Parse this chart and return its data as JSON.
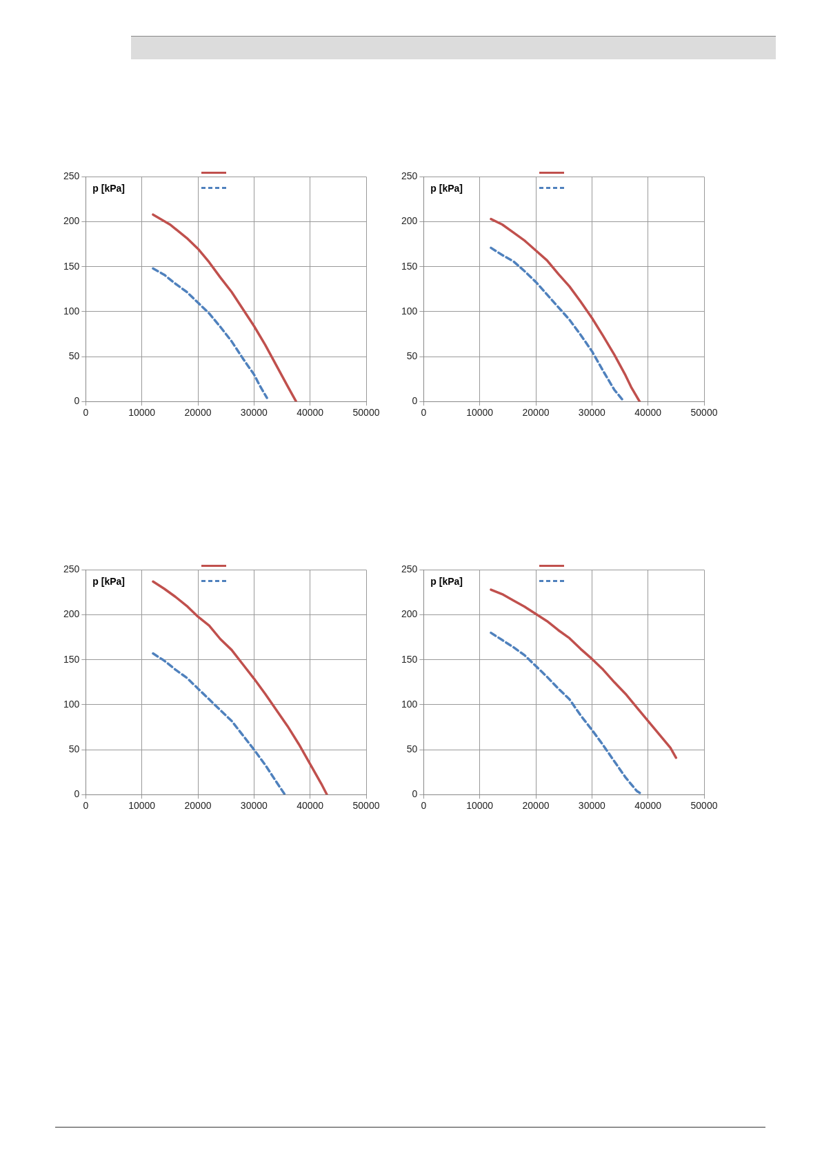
{
  "chart_data": [
    {
      "type": "line",
      "ylabel": "p [kPa]",
      "xlim": [
        0,
        50000
      ],
      "xticks": [
        0,
        10000,
        20000,
        30000,
        40000,
        50000
      ],
      "ylim": [
        0,
        250
      ],
      "yticks": [
        0,
        50,
        100,
        150,
        200,
        250
      ],
      "grid": true,
      "marker": "none",
      "series": [
        {
          "color": "#c0504d",
          "line_style": "solid",
          "x": [
            12000,
            15000,
            18000,
            20000,
            22000,
            24000,
            26000,
            28000,
            30000,
            32000,
            34000,
            36000,
            37500
          ],
          "values": [
            208,
            197,
            182,
            170,
            155,
            138,
            122,
            103,
            84,
            63,
            40,
            17,
            0
          ]
        },
        {
          "color": "#4f81bd",
          "line_style": "dashed",
          "x": [
            12000,
            14000,
            16000,
            18000,
            20000,
            22000,
            24000,
            26000,
            28000,
            30000,
            31000,
            32300
          ],
          "values": [
            148,
            141,
            131,
            122,
            110,
            98,
            83,
            67,
            48,
            30,
            18,
            4
          ]
        }
      ]
    },
    {
      "type": "line",
      "ylabel": "p [kPa]",
      "xlim": [
        0,
        50000
      ],
      "xticks": [
        0,
        10000,
        20000,
        30000,
        40000,
        50000
      ],
      "ylim": [
        0,
        250
      ],
      "yticks": [
        0,
        50,
        100,
        150,
        200,
        250
      ],
      "grid": true,
      "marker": "none",
      "series": [
        {
          "color": "#c0504d",
          "line_style": "solid",
          "x": [
            12000,
            14000,
            16000,
            18000,
            20000,
            22000,
            24000,
            26000,
            28000,
            30000,
            32000,
            34000,
            36000,
            37000,
            38500
          ],
          "values": [
            203,
            197,
            188,
            179,
            168,
            157,
            142,
            128,
            111,
            93,
            73,
            52,
            29,
            16,
            0
          ]
        },
        {
          "color": "#4f81bd",
          "line_style": "dashed",
          "x": [
            12000,
            14000,
            16000,
            18000,
            20000,
            22000,
            24000,
            26000,
            28000,
            30000,
            32000,
            34000,
            35700
          ],
          "values": [
            171,
            163,
            156,
            145,
            133,
            119,
            105,
            91,
            74,
            56,
            34,
            13,
            0
          ]
        }
      ]
    },
    {
      "type": "line",
      "ylabel": "p [kPa]",
      "xlim": [
        0,
        50000
      ],
      "xticks": [
        0,
        10000,
        20000,
        30000,
        40000,
        50000
      ],
      "ylim": [
        0,
        250
      ],
      "yticks": [
        0,
        50,
        100,
        150,
        200,
        250
      ],
      "grid": true,
      "marker": "none",
      "series": [
        {
          "color": "#c0504d",
          "line_style": "solid",
          "x": [
            12000,
            14000,
            16000,
            18000,
            20000,
            22000,
            24000,
            26000,
            28000,
            30000,
            32000,
            34000,
            36000,
            38000,
            40000,
            42000,
            43000
          ],
          "values": [
            237,
            229,
            220,
            210,
            198,
            188,
            173,
            161,
            145,
            129,
            112,
            94,
            76,
            56,
            34,
            12,
            0
          ]
        },
        {
          "color": "#4f81bd",
          "line_style": "dashed",
          "x": [
            12000,
            14000,
            16000,
            18000,
            20000,
            22000,
            24000,
            26000,
            28000,
            30000,
            32000,
            34000,
            35500
          ],
          "values": [
            157,
            149,
            139,
            130,
            118,
            106,
            94,
            82,
            66,
            50,
            33,
            14,
            0
          ]
        }
      ]
    },
    {
      "type": "line",
      "ylabel": "p [kPa]",
      "xlim": [
        0,
        50000
      ],
      "xticks": [
        0,
        10000,
        20000,
        30000,
        40000,
        50000
      ],
      "ylim": [
        0,
        250
      ],
      "yticks": [
        0,
        50,
        100,
        150,
        200,
        250
      ],
      "grid": true,
      "marker": "none",
      "series": [
        {
          "color": "#c0504d",
          "line_style": "solid",
          "x": [
            12000,
            14000,
            16000,
            18000,
            20000,
            22000,
            24000,
            26000,
            28000,
            30000,
            32000,
            34000,
            36000,
            38000,
            40000,
            42000,
            44000,
            45000
          ],
          "values": [
            228,
            223,
            216,
            209,
            201,
            193,
            183,
            174,
            162,
            151,
            139,
            125,
            112,
            97,
            82,
            67,
            52,
            41
          ]
        },
        {
          "color": "#4f81bd",
          "line_style": "dashed",
          "x": [
            12000,
            14000,
            16000,
            18000,
            20000,
            22000,
            24000,
            26000,
            28000,
            30000,
            32000,
            34000,
            36000,
            38000,
            39000
          ],
          "values": [
            180,
            172,
            164,
            155,
            143,
            131,
            118,
            106,
            88,
            72,
            55,
            37,
            19,
            4,
            0
          ]
        }
      ]
    }
  ]
}
